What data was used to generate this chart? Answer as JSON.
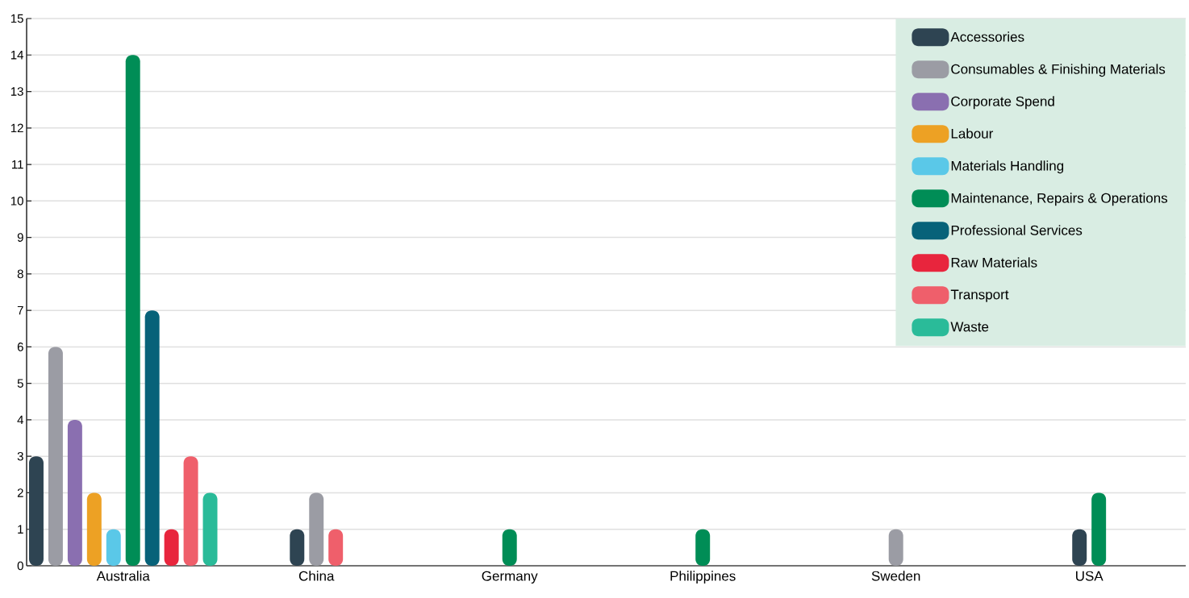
{
  "chart_data": {
    "type": "bar",
    "categories": [
      "Australia",
      "China",
      "Germany",
      "Philippines",
      "Sweden",
      "USA"
    ],
    "series": [
      {
        "name": "Accessories",
        "color": "#2e4452",
        "values": [
          3,
          1,
          null,
          null,
          null,
          1
        ]
      },
      {
        "name": "Consumables & Finishing Materials",
        "color": "#9b9ca4",
        "values": [
          6,
          2,
          null,
          null,
          1,
          null
        ]
      },
      {
        "name": "Corporate Spend",
        "color": "#8a6fb0",
        "values": [
          4,
          null,
          null,
          null,
          null,
          null
        ]
      },
      {
        "name": "Labour",
        "color": "#eda124",
        "values": [
          2,
          null,
          null,
          null,
          null,
          null
        ]
      },
      {
        "name": "Materials Handling",
        "color": "#5ac8e8",
        "values": [
          1,
          null,
          null,
          null,
          null,
          null
        ]
      },
      {
        "name": "Maintenance, Repairs & Operations",
        "color": "#008d56",
        "values": [
          14,
          null,
          1,
          1,
          null,
          2
        ]
      },
      {
        "name": "Professional Services",
        "color": "#076279",
        "values": [
          7,
          null,
          null,
          null,
          null,
          null
        ]
      },
      {
        "name": "Raw Materials",
        "color": "#e8253d",
        "values": [
          1,
          null,
          null,
          null,
          null,
          null
        ]
      },
      {
        "name": "Transport",
        "color": "#ef5f6b",
        "values": [
          3,
          1,
          null,
          null,
          null,
          null
        ]
      },
      {
        "name": "Waste",
        "color": "#2abb99",
        "values": [
          2,
          null,
          null,
          null,
          null,
          null
        ]
      }
    ],
    "ylim": [
      0,
      15
    ],
    "yticks": [
      0,
      1,
      2,
      3,
      4,
      5,
      6,
      7,
      8,
      9,
      10,
      11,
      12,
      13,
      14,
      15
    ],
    "grid": "y",
    "legend": "top right"
  }
}
